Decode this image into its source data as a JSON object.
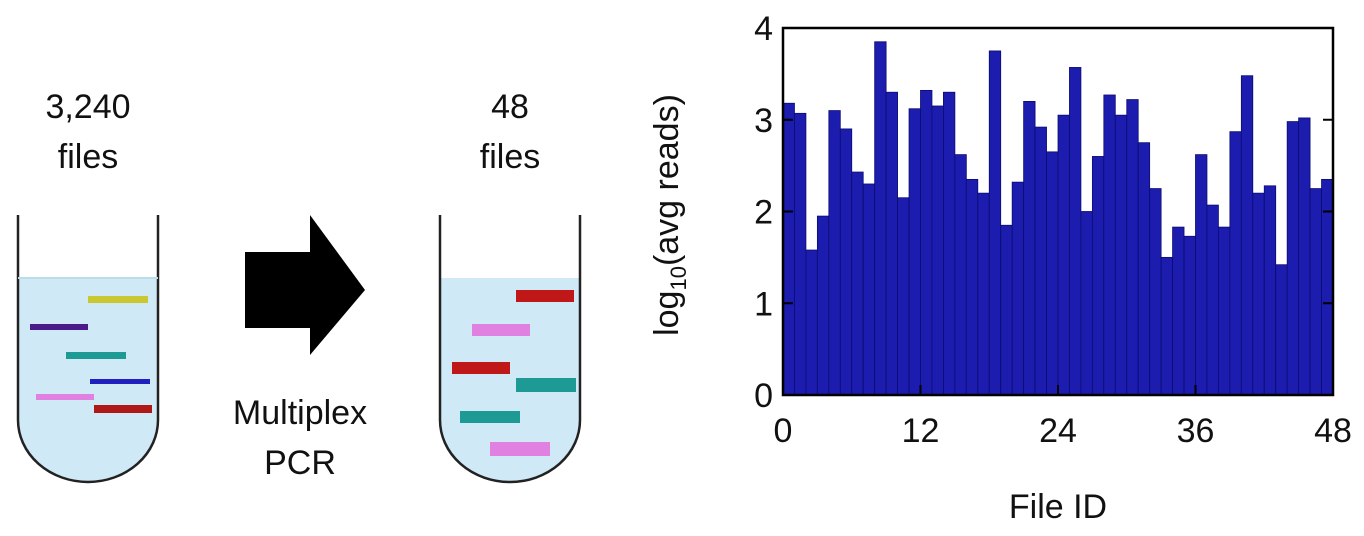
{
  "diagram": {
    "source_count": "3,240",
    "source_unit": "files",
    "step": [
      "Multiplex",
      "PCR"
    ],
    "target_count": "48",
    "target_unit": "files"
  },
  "chart_data": {
    "type": "bar",
    "ylabel": {
      "prefix": "log",
      "sub": "10",
      "suffix": "(avg reads)"
    },
    "xlabel": "File ID",
    "categories": [
      null,
      null,
      null,
      null,
      null,
      null,
      null,
      null,
      null,
      null,
      null,
      null,
      null,
      null,
      null,
      null,
      null,
      null,
      null,
      null,
      null,
      null,
      null,
      null,
      null,
      null,
      null,
      null,
      null,
      null,
      null,
      null,
      null,
      null,
      null,
      null,
      null,
      null,
      null,
      null,
      null,
      null,
      null,
      null,
      null,
      null,
      null,
      null
    ],
    "values": [
      3.18,
      3.07,
      1.58,
      1.95,
      3.1,
      2.9,
      2.43,
      2.3,
      3.85,
      3.3,
      2.15,
      3.12,
      3.32,
      3.15,
      3.3,
      2.62,
      2.35,
      2.2,
      3.75,
      1.85,
      2.32,
      3.2,
      2.92,
      2.65,
      3.05,
      3.57,
      2.0,
      2.6,
      3.27,
      3.05,
      3.22,
      2.75,
      2.25,
      1.5,
      1.83,
      1.73,
      2.62,
      2.07,
      1.83,
      2.87,
      3.48,
      2.2,
      2.28,
      1.42,
      2.98,
      3.02,
      2.25,
      2.35
    ],
    "color": "#1c1cae",
    "xlim": [
      0,
      48
    ],
    "xticks": [
      0,
      12,
      24,
      36,
      48
    ],
    "ylim": [
      0,
      4
    ],
    "yticks": [
      0,
      1,
      2,
      3,
      4
    ]
  }
}
